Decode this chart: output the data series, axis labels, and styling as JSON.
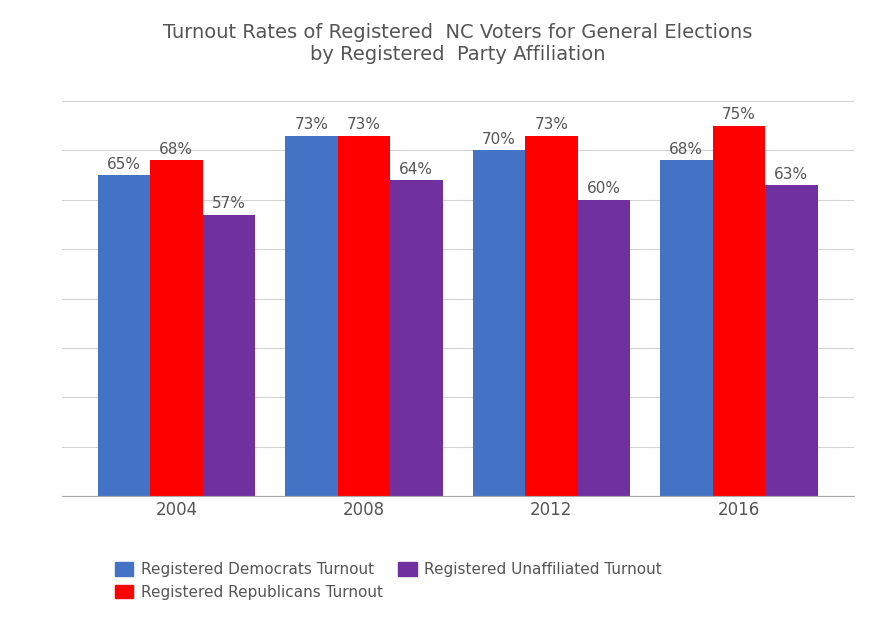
{
  "title": "Turnout Rates of Registered  NC Voters for General Elections\nby Registered  Party Affiliation",
  "years": [
    "2004",
    "2008",
    "2012",
    "2016"
  ],
  "democrats": [
    65,
    73,
    70,
    68
  ],
  "republicans": [
    68,
    73,
    73,
    75
  ],
  "unaffiliated": [
    57,
    64,
    60,
    63
  ],
  "dem_color": "#4472C4",
  "rep_color": "#FF0000",
  "una_color": "#7030A0",
  "background_color": "#FFFFFF",
  "bar_width": 0.28,
  "ylim": [
    0,
    85
  ],
  "legend_labels": [
    "Registered Democrats Turnout",
    "Registered Republicans Turnout",
    "Registered Unaffiliated Turnout"
  ],
  "title_fontsize": 14,
  "tick_fontsize": 12,
  "legend_fontsize": 11,
  "annotation_fontsize": 11,
  "grid_color": "#D3D3D3",
  "text_color": "#555555"
}
